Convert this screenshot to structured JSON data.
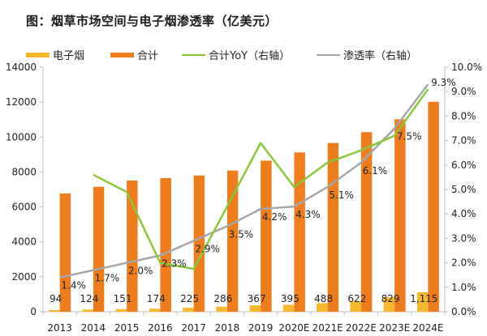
{
  "title": "图：烟草市场空间与电子烟渗透率（亿美元）",
  "colors": {
    "ecig": "#F6B82E",
    "total": "#EE7D20",
    "yoy": "#8CC63F",
    "penetration": "#A6A6A6",
    "axis": "#BFBFBF"
  },
  "legend": [
    {
      "label": "电子烟",
      "kind": "bar",
      "series": "ecig"
    },
    {
      "label": "合计",
      "kind": "bar",
      "series": "total"
    },
    {
      "label": "合计YoY（右轴）",
      "kind": "line",
      "series": "yoy"
    },
    {
      "label": "渗透率（右轴）",
      "kind": "line",
      "series": "penetration"
    }
  ],
  "chart_data": {
    "type": "bar",
    "title": "图：烟草市场空间与电子烟渗透率（亿美元）",
    "categories": [
      "2013",
      "2014",
      "2015",
      "2016",
      "2017",
      "2018",
      "2019",
      "2020E",
      "2021E",
      "2022E",
      "2023E",
      "2024E"
    ],
    "series": [
      {
        "name": "电子烟",
        "type": "bar",
        "axis": "left",
        "values": [
          94,
          124,
          151,
          174,
          225,
          286,
          367,
          395,
          488,
          622,
          829,
          1115
        ],
        "labels": [
          "94",
          "124",
          "151",
          "174",
          "225",
          "286",
          "367",
          "395",
          "488",
          "622",
          "829",
          "1,115"
        ]
      },
      {
        "name": "合计",
        "type": "bar",
        "axis": "left",
        "values": [
          6770,
          7150,
          7510,
          7650,
          7800,
          8080,
          8650,
          9120,
          9660,
          10280,
          11020,
          12020
        ]
      },
      {
        "name": "合计YoY（右轴）",
        "type": "line",
        "axis": "right",
        "values": [
          null,
          5.6,
          4.9,
          2.0,
          1.75,
          4.3,
          6.9,
          5.1,
          6.1,
          6.6,
          7.2,
          9.1
        ]
      },
      {
        "name": "渗透率（右轴）",
        "type": "line",
        "axis": "right",
        "values": [
          1.4,
          1.7,
          2.0,
          2.3,
          2.9,
          3.5,
          4.2,
          4.3,
          5.1,
          6.1,
          7.5,
          9.3
        ],
        "labels": [
          "1.4%",
          "1.7%",
          "2.0%",
          "2.3%",
          "2.9%",
          "3.5%",
          "4.2%",
          "4.3%",
          "5.1%",
          "6.1%",
          "7.5%",
          "9.3%"
        ]
      }
    ],
    "left_axis": {
      "ylim": [
        0,
        14000
      ],
      "ticks": [
        0,
        2000,
        4000,
        6000,
        8000,
        10000,
        12000,
        14000
      ],
      "tick_labels": [
        "0",
        "2000",
        "4000",
        "6000",
        "8000",
        "10000",
        "12000",
        "14000"
      ]
    },
    "right_axis": {
      "ylim": [
        0,
        10
      ],
      "ticks": [
        0,
        1,
        2,
        3,
        4,
        5,
        6,
        7,
        8,
        9,
        10
      ],
      "tick_labels": [
        "0.0%",
        "1.0%",
        "2.0%",
        "3.0%",
        "4.0%",
        "5.0%",
        "6.0%",
        "7.0%",
        "8.0%",
        "9.0%",
        "10.0%"
      ]
    },
    "xlabel": "",
    "ylabel": "",
    "grid": false,
    "legend_position": "top"
  }
}
